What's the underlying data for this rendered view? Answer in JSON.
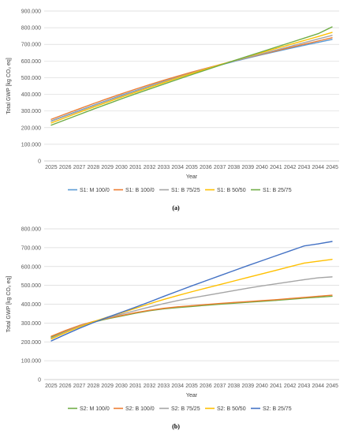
{
  "chart_data": [
    {
      "id": "a",
      "type": "line",
      "caption": "(a)",
      "xlabel": "Year",
      "ylabel": "Total GWP [kg CO₂ eq]",
      "ylim": [
        0,
        900000
      ],
      "yticks": [
        "0",
        "100.000",
        "200.000",
        "300.000",
        "400.000",
        "500.000",
        "600.000",
        "700.000",
        "800.000",
        "900.000"
      ],
      "x": [
        "2025",
        "2026",
        "2027",
        "2028",
        "2029",
        "2030",
        "2031",
        "2032",
        "2033",
        "2034",
        "2035",
        "2036",
        "2037",
        "2038",
        "2039",
        "2040",
        "2041",
        "2042",
        "2043",
        "2044",
        "2045"
      ],
      "grid": "horizontal",
      "legend_position": "bottom",
      "series": [
        {
          "name": "S1: M 100/0",
          "color": "#5b9bd5",
          "values": [
            240000,
            272000,
            303000,
            334000,
            364000,
            394000,
            422000,
            450000,
            477000,
            503000,
            528000,
            552000,
            575000,
            597000,
            618000,
            638000,
            657000,
            676000,
            694000,
            712000,
            730000
          ]
        },
        {
          "name": "S1: B 100/0",
          "color": "#ed7d31",
          "values": [
            250000,
            282000,
            313000,
            344000,
            374000,
            403000,
            431000,
            458000,
            484000,
            509000,
            533000,
            556000,
            578000,
            600000,
            621000,
            641000,
            661000,
            681000,
            701000,
            720000,
            740000
          ]
        },
        {
          "name": "S1: B 75/25",
          "color": "#a5a5a5",
          "values": [
            238000,
            269000,
            300000,
            331000,
            361000,
            390000,
            419000,
            447000,
            475000,
            502000,
            528000,
            553000,
            577000,
            600000,
            622000,
            644000,
            666000,
            688000,
            710000,
            732000,
            754000
          ]
        },
        {
          "name": "S1: B 50/50",
          "color": "#ffc000",
          "values": [
            228000,
            260000,
            292000,
            323000,
            353000,
            383000,
            412000,
            441000,
            470000,
            498000,
            525000,
            551000,
            577000,
            602000,
            627000,
            651000,
            675000,
            699000,
            723000,
            747000,
            772000
          ]
        },
        {
          "name": "S1: B 25/75",
          "color": "#70ad47",
          "values": [
            215000,
            247000,
            279000,
            311000,
            342000,
            373000,
            403000,
            432000,
            461000,
            490000,
            518000,
            546000,
            574000,
            602000,
            629000,
            656000,
            683000,
            710000,
            737000,
            764000,
            805000
          ]
        }
      ]
    },
    {
      "id": "b",
      "type": "line",
      "caption": "(b)",
      "xlabel": "Year",
      "ylabel": "Total GWP [kg CO₂ eq]",
      "ylim": [
        0,
        800000
      ],
      "yticks": [
        "0",
        "100.000",
        "200.000",
        "300.000",
        "400.000",
        "500.000",
        "600.000",
        "700.000",
        "800.000"
      ],
      "x": [
        "2025",
        "2026",
        "2027",
        "2028",
        "2029",
        "2030",
        "2031",
        "2032",
        "2033",
        "2034",
        "2035",
        "2036",
        "2037",
        "2038",
        "2039",
        "2040",
        "2041",
        "2042",
        "2043",
        "2044",
        "2045"
      ],
      "grid": "horizontal",
      "legend_position": "bottom",
      "series": [
        {
          "name": "S2: M 100/0",
          "color": "#70ad47",
          "values": [
            225000,
            255000,
            283000,
            305000,
            322000,
            337000,
            352000,
            365000,
            375000,
            382000,
            388000,
            394000,
            400000,
            405000,
            410000,
            415000,
            420000,
            426000,
            432000,
            437000,
            442000
          ]
        },
        {
          "name": "S2: B 100/0",
          "color": "#ed7d31",
          "values": [
            230000,
            260000,
            287000,
            308000,
            325000,
            340000,
            355000,
            368000,
            378000,
            386000,
            392000,
            398000,
            404000,
            409000,
            414000,
            419000,
            424000,
            430000,
            436000,
            442000,
            448000
          ]
        },
        {
          "name": "S2: B 75/25",
          "color": "#a5a5a5",
          "values": [
            220000,
            252000,
            282000,
            307000,
            328000,
            347000,
            366000,
            385000,
            403000,
            419000,
            433000,
            446000,
            459000,
            472000,
            485000,
            497000,
            508000,
            519000,
            530000,
            540000,
            545000
          ]
        },
        {
          "name": "S2: B 50/50",
          "color": "#ffc000",
          "values": [
            215000,
            248000,
            279000,
            307000,
            331000,
            354000,
            378000,
            402000,
            425000,
            446000,
            466000,
            485000,
            504000,
            523000,
            542000,
            561000,
            580000,
            599000,
            618000,
            628000,
            638000
          ]
        },
        {
          "name": "S2: B 25/75",
          "color": "#4472c4",
          "values": [
            205000,
            239000,
            272000,
            302000,
            330000,
            357000,
            384000,
            412000,
            441000,
            469000,
            497000,
            524000,
            551000,
            578000,
            605000,
            631000,
            657000,
            683000,
            709000,
            720000,
            733000
          ]
        }
      ]
    }
  ]
}
